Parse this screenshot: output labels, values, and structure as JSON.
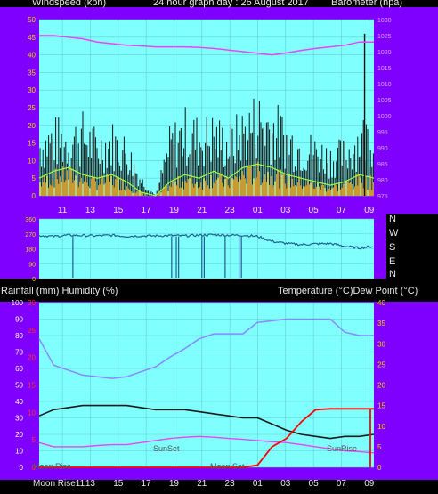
{
  "header": {
    "left_label": "Windspeed (kph)",
    "center_label": "24 hour graph day : 26 August 2017",
    "right_label": "Barometer (hpa)"
  },
  "mid_labels": {
    "left": "Rainfall (mm)  Humidity (%)",
    "right": "Temperature (°C)Dew Point (°C)"
  },
  "compass": [
    "N",
    "W",
    "S",
    "E",
    "N"
  ],
  "time_labels": [
    "11",
    "13",
    "15",
    "17",
    "19",
    "21",
    "23",
    "01",
    "03",
    "05",
    "07",
    "09"
  ],
  "bottom_first_label": "Moon Rise11",
  "markers": {
    "moonrise": "Moon Rise",
    "sunset": "SunSet",
    "moonset": "Moon Set",
    "sunrise": "SunRise"
  },
  "colors": {
    "panel_bg": "#80ffff",
    "frame": "#7f00ff",
    "wind": "#101010",
    "gust": "#a0ff40",
    "rain_bar": "#ff9900",
    "barometer": "#ee44ee",
    "direction": "#1f5f8f",
    "humidity": "#8888ff",
    "temperature": "#1a1a1a",
    "dewpoint": "#ee44ee",
    "rainfall": "#ff0000"
  },
  "chart_data": [
    {
      "type": "line",
      "name": "wind-barometer",
      "x": [
        "10:00",
        "11:00",
        "12:00",
        "13:00",
        "14:00",
        "15:00",
        "16:00",
        "17:00",
        "18:00",
        "19:00",
        "20:00",
        "21:00",
        "22:00",
        "23:00",
        "00:00",
        "01:00",
        "02:00",
        "03:00",
        "04:00",
        "05:00",
        "06:00",
        "07:00",
        "08:00",
        "09:00"
      ],
      "series": [
        {
          "axis": "left",
          "values": [
            16,
            18,
            17,
            19,
            15,
            17,
            14,
            5,
            0,
            16,
            20,
            18,
            19,
            16,
            20,
            24,
            22,
            18,
            15,
            14,
            12,
            13,
            18,
            20
          ]
        },
        {
          "axis": "left",
          "values": [
            5,
            7,
            8,
            6,
            5,
            6,
            4,
            1,
            0,
            4,
            6,
            5,
            7,
            5,
            8,
            9,
            8,
            6,
            5,
            4,
            3,
            4,
            6,
            5
          ]
        },
        {
          "axis": "right",
          "values": [
            1025,
            1025,
            1024.5,
            1024,
            1023,
            1022.5,
            1022,
            1021.8,
            1021.5,
            1021.5,
            1021.5,
            1021.3,
            1021,
            1020.5,
            1020,
            1019.5,
            1019,
            1019.6,
            1020.4,
            1021,
            1021.5,
            1022,
            1023,
            1023
          ]
        }
      ],
      "peak_gust": {
        "x": "08:40",
        "value": 46
      },
      "ylim_left": [
        0,
        50
      ],
      "y_ticks_left": [
        0,
        5,
        10,
        15,
        20,
        25,
        30,
        35,
        40,
        45,
        50
      ],
      "ylim_right": [
        975,
        1030
      ],
      "y_ticks_right": [
        975,
        980,
        985,
        990,
        995,
        1000,
        1005,
        1010,
        1015,
        1020,
        1025,
        1030
      ]
    },
    {
      "type": "line",
      "name": "wind-direction",
      "x": [
        "10:00",
        "11:00",
        "12:00",
        "13:00",
        "14:00",
        "15:00",
        "16:00",
        "17:00",
        "18:00",
        "19:00",
        "20:00",
        "21:00",
        "22:00",
        "23:00",
        "00:00",
        "01:00",
        "02:00",
        "03:00",
        "04:00",
        "05:00",
        "06:00",
        "07:00",
        "08:00",
        "09:00"
      ],
      "series": [
        {
          "values": [
            260,
            255,
            262,
            260,
            258,
            262,
            255,
            258,
            258,
            260,
            258,
            262,
            265,
            262,
            262,
            255,
            225,
            212,
            205,
            210,
            212,
            195,
            185,
            195
          ]
        }
      ],
      "ylim": [
        0,
        360
      ],
      "y_ticks": [
        0,
        90,
        180,
        270,
        360
      ]
    },
    {
      "type": "line",
      "name": "rain-humidity-temperature",
      "x": [
        "10:00",
        "11:00",
        "12:00",
        "13:00",
        "14:00",
        "15:00",
        "16:00",
        "17:00",
        "18:00",
        "19:00",
        "20:00",
        "21:00",
        "22:00",
        "23:00",
        "00:00",
        "01:00",
        "02:00",
        "03:00",
        "04:00",
        "05:00",
        "06:00",
        "07:00",
        "08:00",
        "09:00"
      ],
      "series": [
        {
          "axis": "left",
          "values": [
            78,
            62,
            59,
            56,
            55,
            54,
            55,
            58,
            61,
            67,
            72,
            78,
            81,
            81,
            81,
            88,
            89,
            90,
            90,
            90,
            90,
            82,
            80,
            80
          ]
        },
        {
          "axis": "right",
          "values": [
            12.5,
            14,
            14.5,
            15,
            15,
            15,
            15,
            14.5,
            14,
            14,
            14,
            13.5,
            13,
            12.5,
            12,
            12,
            10.5,
            9,
            8,
            7.5,
            7,
            7.5,
            7.5,
            8
          ]
        },
        {
          "axis": "right",
          "values": [
            6,
            5,
            5,
            5,
            5.3,
            5.5,
            5.5,
            6,
            6.5,
            7,
            7.3,
            7.5,
            7.3,
            7,
            6.8,
            6.5,
            6.2,
            6,
            5.5,
            5,
            4.5,
            4,
            3.8,
            3.5
          ]
        },
        {
          "axis": "right",
          "values": [
            0,
            0,
            0,
            0,
            0,
            0,
            0,
            0,
            0,
            0,
            0,
            0,
            0,
            0,
            0,
            0.5,
            5,
            7,
            11,
            14,
            14.2,
            14.2,
            14.2,
            14.2
          ]
        }
      ],
      "ylim_left": [
        0,
        100
      ],
      "y_ticks_left": [
        0,
        10,
        20,
        30,
        40,
        50,
        60,
        70,
        80,
        90,
        100
      ],
      "ylim_right": [
        0,
        40
      ],
      "y_ticks_right": [
        0,
        5,
        10,
        15,
        20,
        25,
        30,
        35,
        40
      ],
      "y_ticks_rain": [
        0,
        5,
        10,
        15,
        20,
        25,
        30
      ]
    }
  ]
}
